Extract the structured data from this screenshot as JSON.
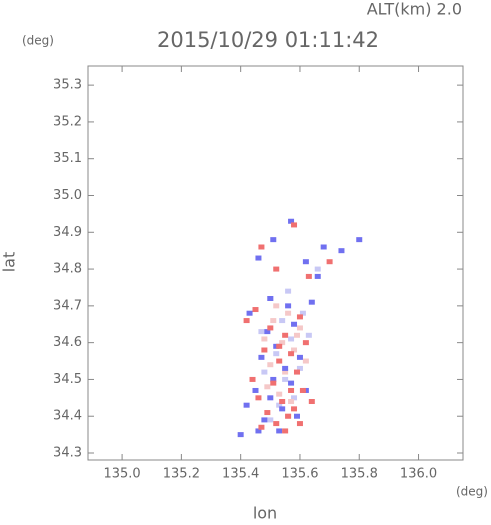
{
  "chart_data": {
    "type": "scatter",
    "title": "2015/10/29 01:11:42",
    "subtitle": "ALT(km) 2.0",
    "x_label": "lon",
    "x_unit": "(deg)",
    "y_label": "lat",
    "y_unit": "(deg)",
    "xlim": [
      134.885,
      136.15
    ],
    "ylim": [
      34.281,
      35.352
    ],
    "xticks": [
      {
        "value": 135,
        "label": "135.0"
      },
      135.2,
      135.4,
      135.6,
      135.8,
      {
        "value": 136,
        "label": "136.0"
      }
    ],
    "yticks": [
      34.3,
      34.4,
      34.5,
      34.6,
      34.7,
      34.8,
      34.9,
      {
        "value": 35,
        "label": "35.0"
      },
      35.1,
      35.2,
      35.3
    ],
    "grid": false,
    "series": [
      {
        "color": "#c8c8f5",
        "x": [
          135.5,
          135.54,
          135.61,
          135.47,
          135.57,
          135.52,
          135.6,
          135.48,
          135.55,
          135.53,
          135.58,
          135.5,
          135.63,
          135.66,
          135.56
        ],
        "values": [
          34.72,
          34.66,
          34.68,
          34.63,
          34.61,
          34.57,
          34.53,
          34.52,
          34.5,
          34.43,
          34.45,
          34.39,
          34.62,
          34.8,
          34.74
        ]
      },
      {
        "color": "#f5c8c8",
        "x": [
          135.52,
          135.56,
          135.6,
          135.48,
          135.54,
          135.58,
          135.5,
          135.55,
          135.62,
          135.53,
          135.57,
          135.49,
          135.59,
          135.51,
          135.56
        ],
        "values": [
          34.7,
          34.68,
          34.64,
          34.61,
          34.6,
          34.58,
          34.54,
          34.52,
          34.55,
          34.46,
          34.44,
          34.48,
          34.62,
          34.66,
          34.4
        ]
      },
      {
        "color": "#7070f0",
        "x": [
          135.57,
          135.51,
          135.62,
          135.68,
          135.74,
          135.8,
          135.46,
          135.5,
          135.56,
          135.64,
          135.43,
          135.49,
          135.58,
          135.52,
          135.47,
          135.55,
          135.6,
          135.51,
          135.45,
          135.57,
          135.5,
          135.54,
          135.59,
          135.42,
          135.48,
          135.62,
          135.53,
          135.4,
          135.46,
          135.66
        ],
        "values": [
          34.93,
          34.88,
          34.82,
          34.86,
          34.85,
          34.88,
          34.83,
          34.72,
          34.7,
          34.71,
          34.68,
          34.63,
          34.65,
          34.59,
          34.56,
          34.53,
          34.56,
          34.5,
          34.47,
          34.49,
          34.45,
          34.42,
          34.4,
          34.43,
          34.39,
          34.47,
          34.36,
          34.35,
          34.36,
          34.78
        ]
      },
      {
        "color": "#f07070",
        "x": [
          135.58,
          135.47,
          135.52,
          135.63,
          135.7,
          135.45,
          135.42,
          135.5,
          135.55,
          135.6,
          135.48,
          135.53,
          135.57,
          135.62,
          135.44,
          135.51,
          135.59,
          135.46,
          135.54,
          135.61,
          135.49,
          135.56,
          135.58,
          135.52,
          135.47,
          135.64,
          135.55,
          135.6,
          135.53,
          135.57
        ],
        "values": [
          34.92,
          34.86,
          34.8,
          34.78,
          34.82,
          34.69,
          34.66,
          34.64,
          34.62,
          34.67,
          34.58,
          34.55,
          34.57,
          34.6,
          34.5,
          34.49,
          34.52,
          34.45,
          34.44,
          34.47,
          34.41,
          34.4,
          34.42,
          34.38,
          34.37,
          34.44,
          34.36,
          34.38,
          34.59,
          34.47
        ]
      }
    ]
  }
}
